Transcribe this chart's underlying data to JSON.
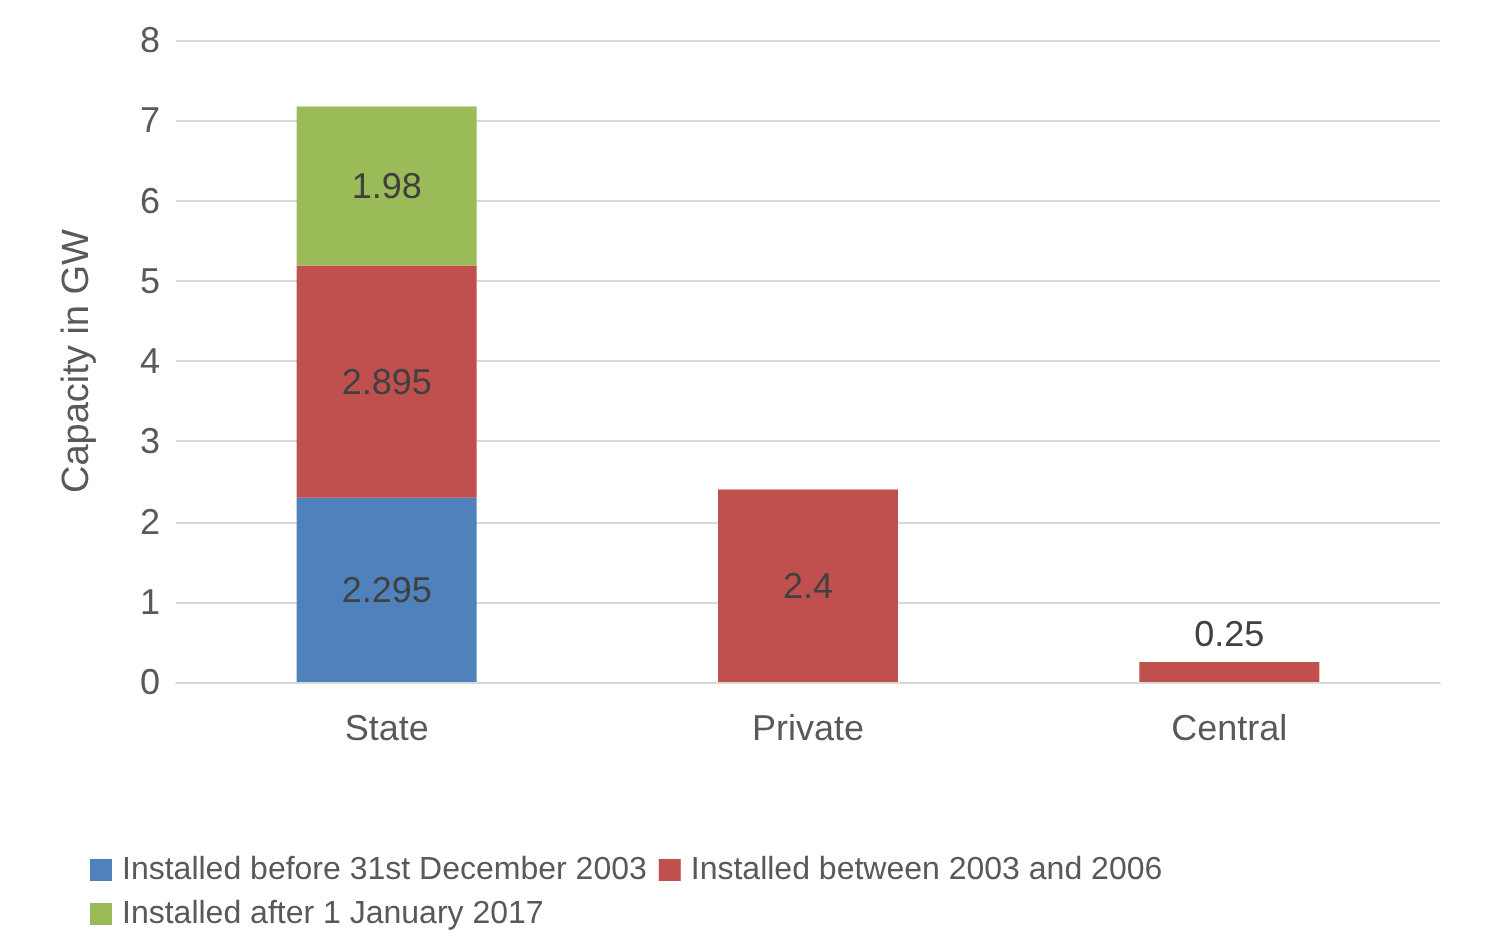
{
  "chart_data": {
    "type": "bar",
    "ylabel": "Capacity in GW",
    "categories": [
      "State",
      "Private",
      "Central"
    ],
    "series": [
      {
        "name": "Installed before 31st December 2003",
        "color": "#4f81bd",
        "values": [
          2.295,
          null,
          null
        ]
      },
      {
        "name": "Installed between 2003 and 2006",
        "color": "#c0504d",
        "values": [
          2.895,
          2.4,
          0.25
        ]
      },
      {
        "name": "Installed after 1 January 2017",
        "color": "#9bbb59",
        "values": [
          1.98,
          null,
          null
        ]
      }
    ],
    "stacked": true,
    "ylim": [
      0,
      8
    ],
    "yticks": [
      0,
      1,
      2,
      3,
      4,
      5,
      6,
      7,
      8
    ],
    "grid": "y",
    "legend": "bottom",
    "data_labels": true
  }
}
